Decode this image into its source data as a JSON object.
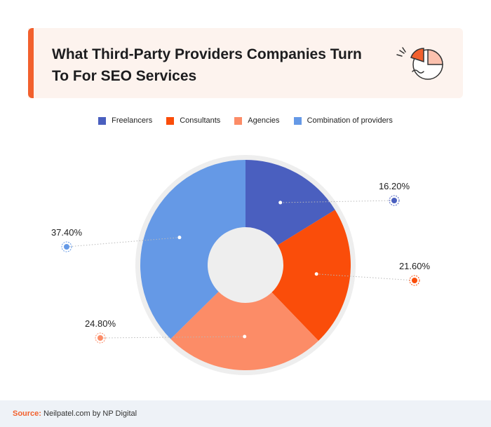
{
  "title": "What Third-Party Providers Companies Turn To For SEO Services",
  "chart_data": {
    "type": "pie",
    "style": "donut",
    "title": "What Third-Party Providers Companies Turn To For SEO Services",
    "legend_placement": "top",
    "slices": [
      {
        "name": "Freelancers",
        "value": 16.2,
        "label": "16.20%",
        "color": "#4a5fbf"
      },
      {
        "name": "Consultants",
        "value": 21.6,
        "label": "21.60%",
        "color": "#fa4d0a"
      },
      {
        "name": "Agencies",
        "value": 24.8,
        "label": "24.80%",
        "color": "#fc8c67"
      },
      {
        "name": "Combination of providers",
        "value": 37.4,
        "label": "37.40%",
        "color": "#6599e6"
      }
    ]
  },
  "colors": {
    "accent": "#f2602d",
    "header_bg": "#fdf3ee",
    "ring": "#eeeeee",
    "footer_bg": "#eef2f7"
  },
  "icons": {
    "header_logo": "pie-chart-icon"
  },
  "footer": {
    "source_label": "Source:",
    "source_text": "Neilpatel.com by NP Digital"
  }
}
